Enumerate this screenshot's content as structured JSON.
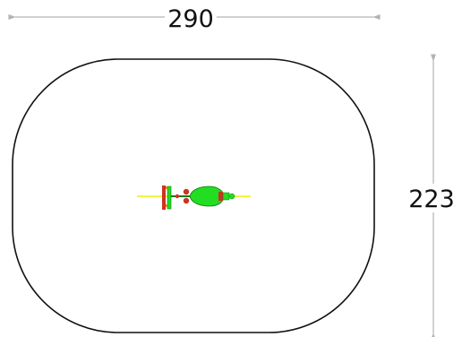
{
  "dimensions": {
    "width": {
      "label": "290",
      "value": 290
    },
    "height": {
      "label": "223",
      "value": 223
    }
  },
  "colors": {
    "outline": "#111111",
    "dimension_line": "#b3b3b3",
    "axis_line": "#f2f200",
    "body_fill": "#22dd22",
    "body_stroke": "#0a7a0a",
    "accent_red": "#cc3322",
    "accent_orange": "#e08a1a"
  },
  "icons": {
    "center_object": "top-view-device-icon"
  }
}
